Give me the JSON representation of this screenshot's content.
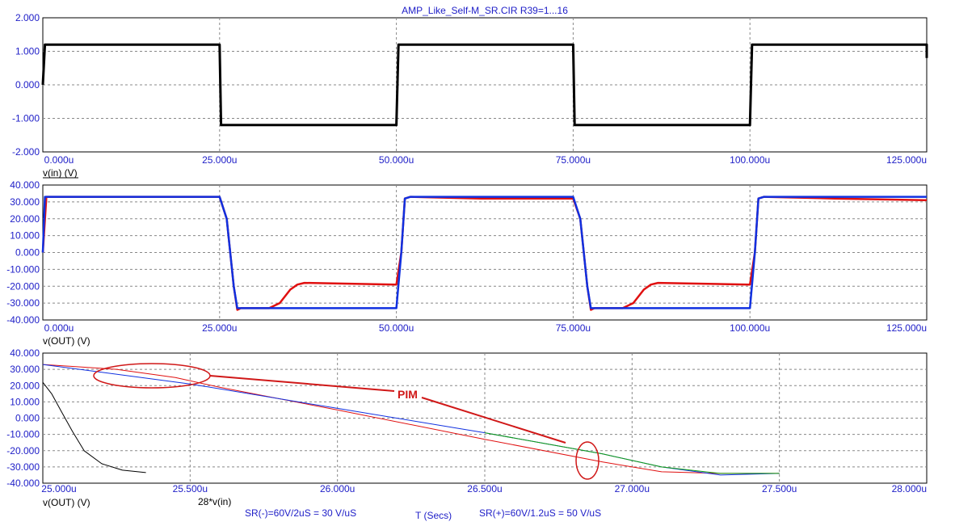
{
  "title": "AMP_Like_Self-M_SR.CIR R39=1...16",
  "colors": {
    "axis_text": "#2020c8",
    "input": "#000000",
    "out_red": "#e01010",
    "out_blue": "#1030e0",
    "out_green": "#10a010",
    "annotation": "#d01818",
    "grid": "#888888"
  },
  "annotations": {
    "pim": "PIM",
    "sr_minus": "SR(-)=60V/2uS = 30 V/uS",
    "sr_plus": "SR(+)=60V/1.2uS = 50 V/uS",
    "x_axis": "T (Secs)"
  },
  "chart_data": [
    {
      "type": "line",
      "ylabel": "v(in) (V)",
      "xlim": [
        0,
        125
      ],
      "ylim": [
        -2,
        2
      ],
      "x_unit": "u",
      "grid": true,
      "xticks": [
        "0.000u",
        "25.000u",
        "50.000u",
        "75.000u",
        "100.000u",
        "125.000u"
      ],
      "yticks": [
        "2.000",
        "1.000",
        "0.000",
        "-1.000",
        "-2.000"
      ],
      "series": [
        {
          "name": "v(in) (V)",
          "color": "#000000",
          "x": [
            0,
            0.3,
            25,
            25.2,
            50,
            50.3,
            75,
            75.2,
            100,
            100.3,
            125,
            125
          ],
          "y": [
            0,
            1.2,
            1.2,
            -1.2,
            -1.2,
            1.2,
            1.2,
            -1.2,
            -1.2,
            1.2,
            1.2,
            0.8
          ]
        }
      ]
    },
    {
      "type": "line",
      "ylabel": "v(OUT) (V)",
      "xlim": [
        0,
        125
      ],
      "ylim": [
        -40,
        40
      ],
      "x_unit": "u",
      "grid": true,
      "xticks": [
        "0.000u",
        "25.000u",
        "50.000u",
        "75.000u",
        "100.000u",
        "125.000u"
      ],
      "yticks": [
        "40.000",
        "30.000",
        "20.000",
        "10.000",
        "0.000",
        "-10.000",
        "-20.000",
        "-30.000",
        "-40.000"
      ],
      "series": [
        {
          "color": "#e01010",
          "x": [
            0,
            0.5,
            25,
            26,
            27,
            27.5,
            28,
            32,
            33.5,
            35,
            36,
            37,
            50,
            50.7,
            51.2,
            52,
            62,
            75,
            76,
            77,
            77.5,
            78,
            82,
            83.5,
            85,
            86,
            87,
            100,
            100.7,
            101.2,
            102,
            112,
            125
          ],
          "y": [
            0,
            33,
            33,
            20,
            -20,
            -34,
            -33,
            -33,
            -30,
            -22,
            -19,
            -18,
            -19,
            0,
            32,
            33,
            32,
            32,
            20,
            -20,
            -34,
            -33,
            -33,
            -30,
            -22,
            -19,
            -18,
            -19,
            0,
            32,
            33,
            32,
            31
          ]
        },
        {
          "color": "#1030e0",
          "x": [
            0,
            0.3,
            25,
            26,
            27,
            27.5,
            28,
            50,
            50.7,
            51.2,
            52,
            75,
            76,
            77,
            77.5,
            78,
            100,
            100.7,
            101.2,
            102,
            125
          ],
          "y": [
            0,
            33,
            33,
            20,
            -20,
            -33,
            -33,
            -33,
            0,
            32,
            33,
            33,
            20,
            -20,
            -33,
            -33,
            -33,
            0,
            32,
            33,
            33
          ]
        }
      ]
    },
    {
      "type": "line",
      "ylabel": "v(OUT) (V)",
      "xlim": [
        25,
        28
      ],
      "ylim": [
        -40,
        40
      ],
      "x_unit": "u",
      "grid": true,
      "xticks": [
        "25.000u",
        "25.500u",
        "26.000u",
        "26.500u",
        "27.000u",
        "27.500u",
        "28.000u"
      ],
      "yticks": [
        "40.000",
        "30.000",
        "20.000",
        "10.000",
        "0.000",
        "-10.000",
        "-20.000",
        "-30.000",
        "-40.000"
      ],
      "series": [
        {
          "name": "28*v(in)",
          "color": "#000000",
          "x": [
            25,
            25.03,
            25.06,
            25.1,
            25.14,
            25.2,
            25.27,
            25.35
          ],
          "y": [
            22,
            15,
            5,
            -8,
            -20,
            -28,
            -32,
            -33.5
          ]
        },
        {
          "color": "#e01010",
          "x": [
            25,
            25.25,
            25.45,
            25.6,
            26,
            26.5,
            26.9,
            27.1,
            27.3,
            27.5
          ],
          "y": [
            33,
            30,
            25,
            19,
            5,
            -13,
            -27,
            -33,
            -34,
            -34
          ]
        },
        {
          "color": "#1030e0",
          "x": [
            25,
            25.5,
            26,
            26.5,
            26.9,
            27.1,
            27.3,
            27.5
          ],
          "y": [
            33,
            21,
            6,
            -9,
            -22,
            -30,
            -35,
            -34
          ]
        },
        {
          "color": "#10a010",
          "x": [
            26.5,
            26.9,
            27.1,
            27.3,
            27.5
          ],
          "y": [
            -9,
            -22,
            -30,
            -34,
            -34
          ]
        }
      ]
    }
  ]
}
